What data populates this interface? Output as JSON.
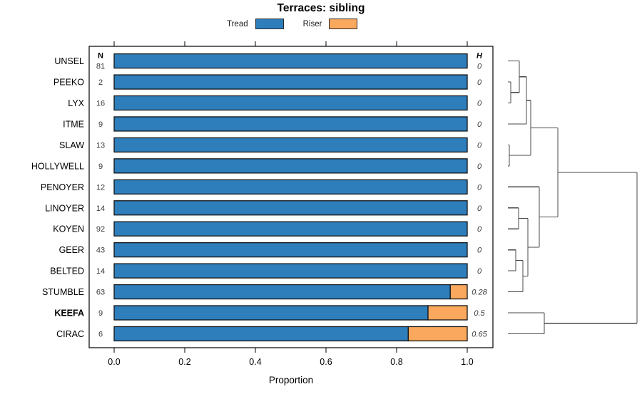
{
  "chart_data": {
    "type": "bar",
    "variant": "horizontal-stacked-proportion-with-dendrogram",
    "title": "Terraces: sibling",
    "xlabel": "Proportion",
    "xlim": [
      0,
      1
    ],
    "xticks": [
      "0.0",
      "0.2",
      "0.4",
      "0.6",
      "0.8",
      "1.0"
    ],
    "grid": false,
    "legend_position": "top",
    "legend": [
      {
        "label": "Tread",
        "color": "#2E7EBB"
      },
      {
        "label": "Riser",
        "color": "#F9A85E"
      }
    ],
    "columns": {
      "n_header": "N",
      "h_header": "H"
    },
    "highlight_category": "KEEFA",
    "categories": [
      "UNSEL",
      "PEEKO",
      "LYX",
      "ITME",
      "SLAW",
      "HOLLYWELL",
      "PENOYER",
      "LINOYER",
      "KOYEN",
      "GEER",
      "BELTED",
      "STUMBLE",
      "KEEFA",
      "CIRAC"
    ],
    "rows": [
      {
        "label": "UNSEL",
        "n": "81",
        "h": "0",
        "tread": 1,
        "riser": 0
      },
      {
        "label": "PEEKO",
        "n": "2",
        "h": "0",
        "tread": 1,
        "riser": 0
      },
      {
        "label": "LYX",
        "n": "16",
        "h": "0",
        "tread": 1,
        "riser": 0
      },
      {
        "label": "ITME",
        "n": "9",
        "h": "0",
        "tread": 1,
        "riser": 0
      },
      {
        "label": "SLAW",
        "n": "13",
        "h": "0",
        "tread": 1,
        "riser": 0
      },
      {
        "label": "HOLLYWELL",
        "n": "9",
        "h": "0",
        "tread": 1,
        "riser": 0
      },
      {
        "label": "PENOYER",
        "n": "12",
        "h": "0",
        "tread": 1,
        "riser": 0
      },
      {
        "label": "LINOYER",
        "n": "14",
        "h": "0",
        "tread": 1,
        "riser": 0
      },
      {
        "label": "KOYEN",
        "n": "92",
        "h": "0",
        "tread": 1,
        "riser": 0
      },
      {
        "label": "GEER",
        "n": "43",
        "h": "0",
        "tread": 1,
        "riser": 0
      },
      {
        "label": "BELTED",
        "n": "14",
        "h": "0",
        "tread": 1,
        "riser": 0
      },
      {
        "label": "STUMBLE",
        "n": "63",
        "h": "0.28",
        "tread": 0.952,
        "riser": 0.048
      },
      {
        "label": "KEEFA",
        "n": "9",
        "h": "0.5",
        "tread": 0.889,
        "riser": 0.111
      },
      {
        "label": "CIRAC",
        "n": "6",
        "h": "0.65",
        "tread": 0.833,
        "riser": 0.167
      }
    ],
    "dendrogram": {
      "leaf_x": 712,
      "merges": [
        [
          "L1",
          "L2",
          716
        ],
        [
          "L0",
          "M1",
          728
        ],
        [
          "M2",
          "L3",
          738
        ],
        [
          "L4",
          "L5",
          714
        ],
        [
          "M3",
          "M4",
          744
        ],
        [
          "L7",
          "L8",
          727
        ],
        [
          "L9",
          "L10",
          723
        ],
        [
          "M7",
          "L11",
          733
        ],
        [
          "M6",
          "M8",
          740
        ],
        [
          "L6",
          "M9",
          756
        ],
        [
          "M5",
          "M10",
          782
        ],
        [
          "L12",
          "L13",
          763
        ],
        [
          "M11",
          "M12",
          893
        ]
      ]
    }
  },
  "colors": {
    "tread": "#2E7EBB",
    "riser": "#F9A85E",
    "bar_stroke": "#141414",
    "box_stroke": "#000000",
    "dendrogram_line": "#4A4A4A",
    "text": "#000000",
    "value_text": "#3A3A3A"
  }
}
